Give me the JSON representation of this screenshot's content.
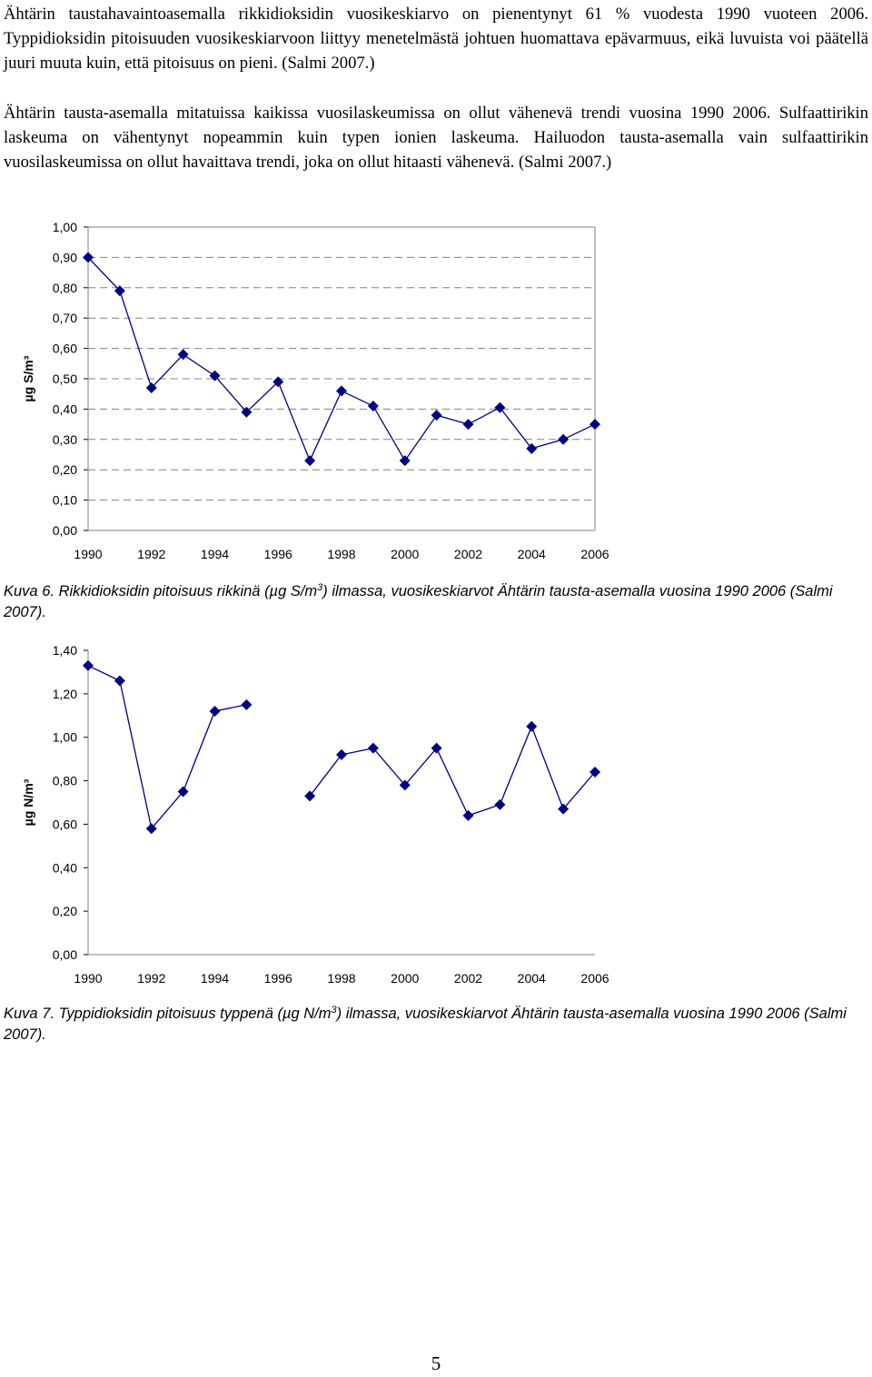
{
  "document": {
    "paragraph_1": "Ähtärin taustahavaintoasemalla rikkidioksidin vuosikeskiarvo on pienentynyt 61 % vuodesta 1990 vuoteen 2006. Typpidioksidin pitoisuuden vuosikeskiarvoon liittyy menetelmästä johtuen huomattava epävarmuus, eikä luvuista voi päätellä juuri muuta kuin, että pitoisuus on pieni. (Salmi 2007.)",
    "paragraph_2": "Ähtärin tausta-asemalla mitatuissa kaikissa vuosilaskeumissa on ollut vähenevä trendi vuosina 1990 2006. Sulfaattirikin laskeuma on vähentynyt nopeammin kuin typen ionien laskeuma. Hailuodon tausta-asemalla vain sulfaattirikin vuosilaskeumissa on ollut havaittava trendi, joka on ollut hitaasti vähenevä. (Salmi 2007.)",
    "caption_1": {
      "label": "Kuva 6.",
      "text_before_sup": "Rikkidioksidin pitoisuus rikkinä (µg S/m",
      "sup": "3",
      "text_after_sup": ") ilmassa, vuosikeskiarvot Ähtärin tausta-asemalla vuosina 1990 2006 (Salmi 2007)."
    },
    "caption_2": {
      "label": "Kuva 7.",
      "text_before_sup": "Typpidioksidin pitoisuus typpenä (µg N/m",
      "sup": "3",
      "text_after_sup": ") ilmassa, vuosikeskiarvot Ähtärin tausta-asemalla vuosina 1990 2006 (Salmi 2007)."
    },
    "page_number": "5"
  },
  "chart_data": [
    {
      "type": "line",
      "title": "",
      "xlabel": "",
      "ylabel": "µg S/m³",
      "x": [
        1990,
        1991,
        1992,
        1993,
        1994,
        1995,
        1996,
        1997,
        1998,
        1999,
        2000,
        2001,
        2002,
        2003,
        2004,
        2005,
        2006
      ],
      "series": [
        {
          "values": [
            0.9,
            0.79,
            0.47,
            0.58,
            0.51,
            0.39,
            0.49,
            0.23,
            0.46,
            0.41,
            0.23,
            0.38,
            0.35,
            0.405,
            0.27,
            0.3,
            0.35
          ]
        }
      ],
      "xticks": [
        "1990",
        "1992",
        "1994",
        "1996",
        "1998",
        "2000",
        "2002",
        "2004",
        "2006"
      ],
      "yticks": [
        "0,00",
        "0,10",
        "0,20",
        "0,30",
        "0,40",
        "0,50",
        "0,60",
        "0,70",
        "0,80",
        "0,90",
        "1,00"
      ],
      "ylim": [
        0,
        1.0
      ],
      "xlim": [
        1990,
        2006
      ],
      "grid": "horizontal dashed",
      "marker": "diamond",
      "color": "#000080"
    },
    {
      "type": "line",
      "title": "",
      "xlabel": "",
      "ylabel": "µg N/m³",
      "x": [
        1990,
        1991,
        1992,
        1993,
        1994,
        1995,
        1996,
        1997,
        1998,
        1999,
        2000,
        2001,
        2002,
        2003,
        2004,
        2005,
        2006
      ],
      "series": [
        {
          "values": [
            1.33,
            1.26,
            0.58,
            0.75,
            1.12,
            1.15,
            null,
            0.73,
            0.92,
            0.95,
            0.78,
            0.95,
            0.64,
            0.69,
            1.05,
            0.67,
            0.84
          ]
        }
      ],
      "xticks": [
        "1990",
        "1992",
        "1994",
        "1996",
        "1998",
        "2000",
        "2002",
        "2004",
        "2006"
      ],
      "yticks": [
        "0,00",
        "0,20",
        "0,40",
        "0,60",
        "0,80",
        "1,00",
        "1,20",
        "1,40"
      ],
      "ylim": [
        0,
        1.4
      ],
      "xlim": [
        1990,
        2006
      ],
      "grid": "none",
      "marker": "diamond",
      "color": "#000080"
    }
  ]
}
